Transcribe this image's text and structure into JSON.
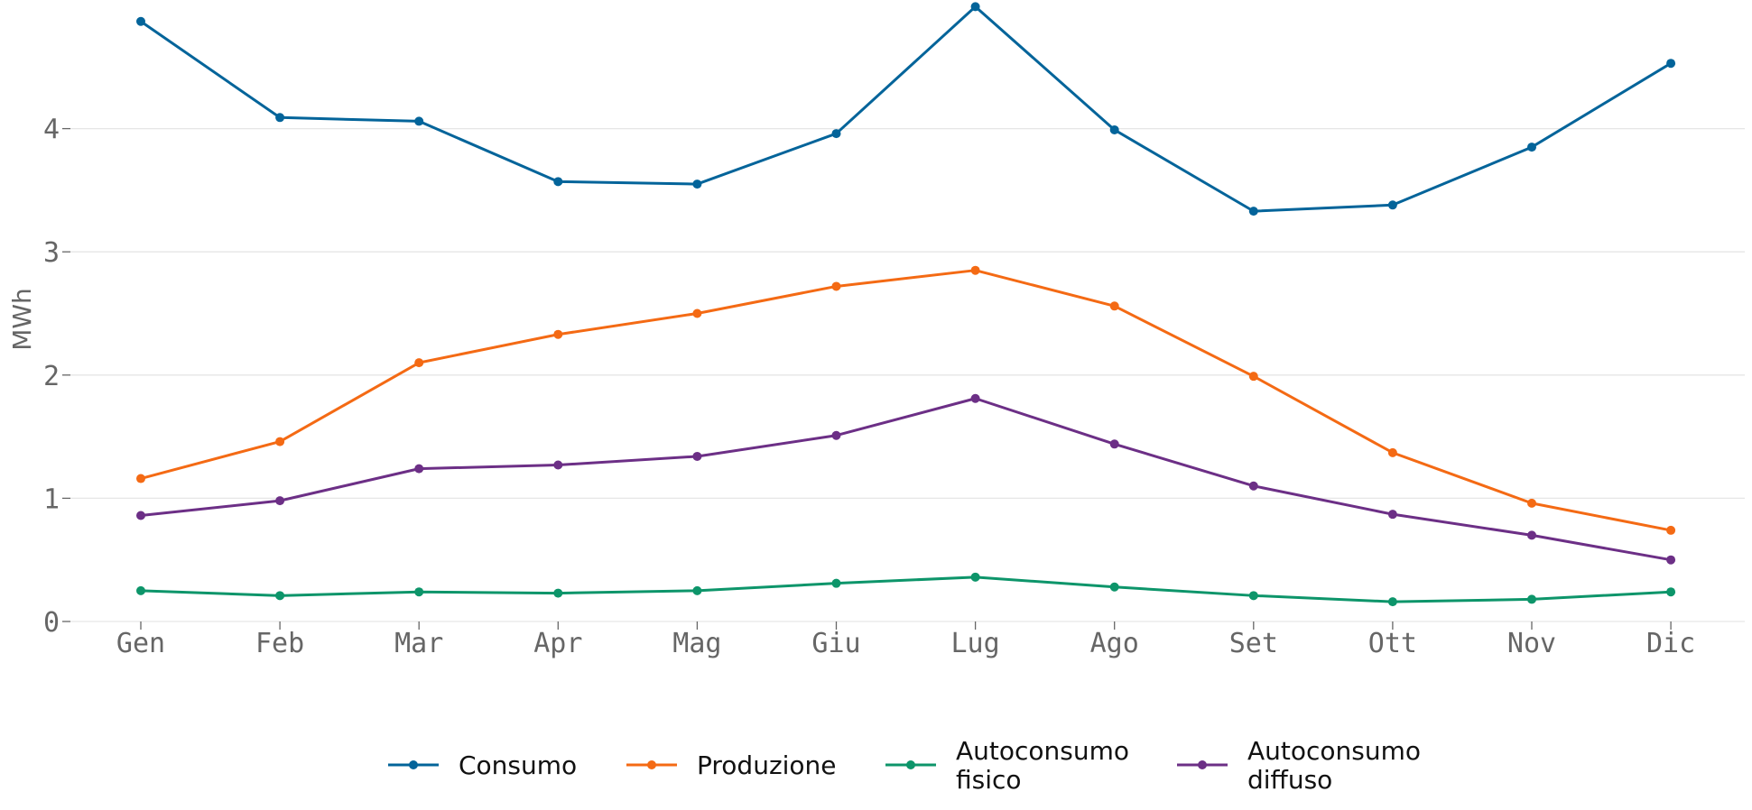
{
  "chart_data": {
    "type": "line",
    "categories": [
      "Gen",
      "Feb",
      "Mar",
      "Apr",
      "Mag",
      "Giu",
      "Lug",
      "Ago",
      "Set",
      "Ott",
      "Nov",
      "Dic"
    ],
    "ylabel": "MWh",
    "ylim": [
      0,
      5.0
    ],
    "yticks": [
      0,
      1,
      2,
      3,
      4
    ],
    "grid": "horizontal",
    "legend_position": "bottom",
    "series": [
      {
        "name": "Consumo",
        "legend_lines": [
          "Consumo"
        ],
        "color": "#03649a",
        "values": [
          4.87,
          4.09,
          4.06,
          3.57,
          3.55,
          3.96,
          4.99,
          3.99,
          3.33,
          3.38,
          3.85,
          4.53
        ]
      },
      {
        "name": "Produzione",
        "legend_lines": [
          "Produzione"
        ],
        "color": "#f46a14",
        "values": [
          1.16,
          1.46,
          2.1,
          2.33,
          2.5,
          2.72,
          2.85,
          2.56,
          1.99,
          1.37,
          0.96,
          0.74
        ]
      },
      {
        "name": "Autoconsumo fisico",
        "legend_lines": [
          "Autoconsumo",
          "fisico"
        ],
        "color": "#0d956a",
        "values": [
          0.25,
          0.21,
          0.24,
          0.23,
          0.25,
          0.31,
          0.36,
          0.28,
          0.21,
          0.16,
          0.18,
          0.24
        ]
      },
      {
        "name": "Autoconsumo diffuso",
        "legend_lines": [
          "Autoconsumo",
          "diffuso"
        ],
        "color": "#6c2f86",
        "values": [
          0.86,
          0.98,
          1.24,
          1.27,
          1.34,
          1.51,
          1.81,
          1.44,
          1.1,
          0.87,
          0.7,
          0.5
        ]
      }
    ]
  }
}
